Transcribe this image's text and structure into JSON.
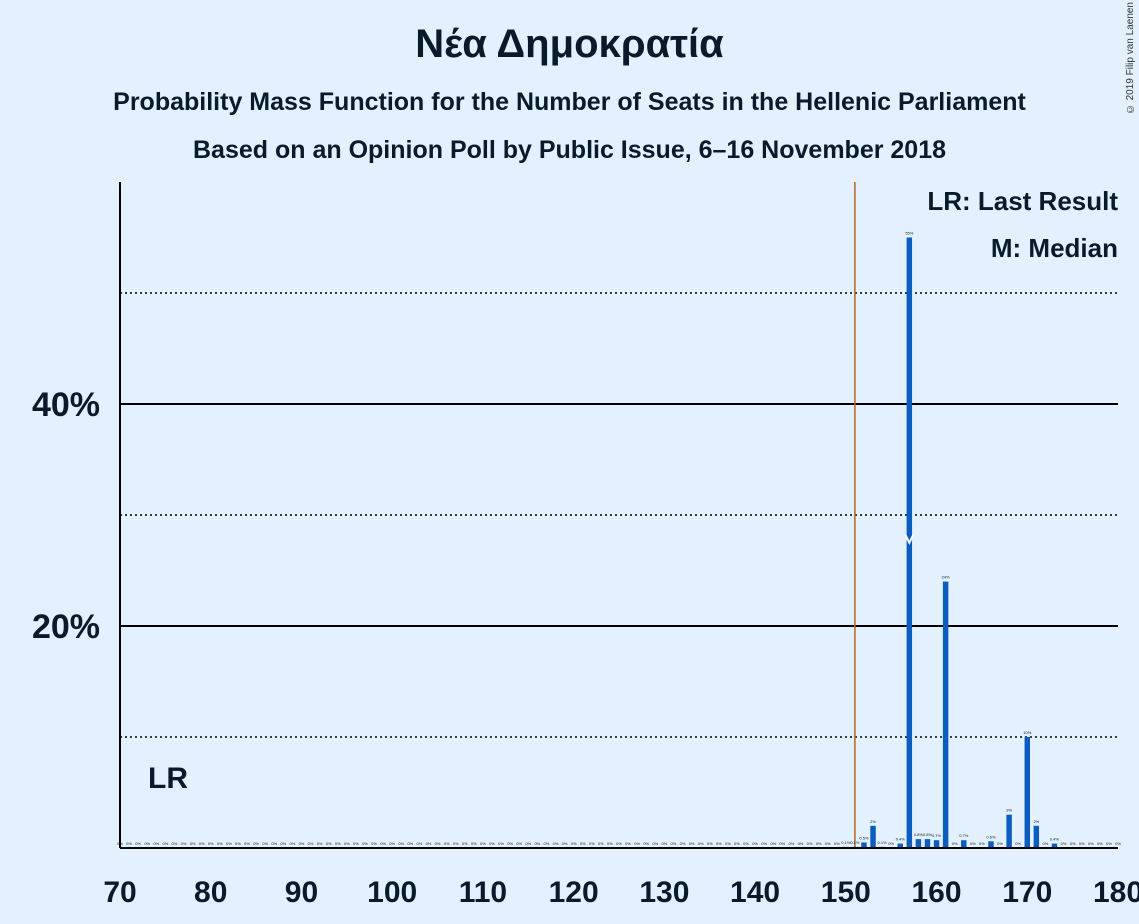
{
  "title": "Νέα Δημοκρατία",
  "subtitle_1": "Probability Mass Function for the Number of Seats in the Hellenic Parliament",
  "subtitle_2": "Based on an Opinion Poll by Public Issue, 6–16 November 2018",
  "copyright": "© 2019 Filip van Laenen",
  "legend": {
    "last_result": "LR: Last Result",
    "median": "M: Median"
  },
  "lr_label": "LR",
  "colors": {
    "background": "#e3f0fd",
    "bar": "#0a5cbf",
    "last_result_line": "#b4661e",
    "text": "#0b1a2a"
  },
  "chart_data": {
    "type": "bar",
    "x": [
      70,
      71,
      72,
      73,
      74,
      75,
      76,
      77,
      78,
      79,
      80,
      81,
      82,
      83,
      84,
      85,
      86,
      87,
      88,
      89,
      90,
      91,
      92,
      93,
      94,
      95,
      96,
      97,
      98,
      99,
      100,
      101,
      102,
      103,
      104,
      105,
      106,
      107,
      108,
      109,
      110,
      111,
      112,
      113,
      114,
      115,
      116,
      117,
      118,
      119,
      120,
      121,
      122,
      123,
      124,
      125,
      126,
      127,
      128,
      129,
      130,
      131,
      132,
      133,
      134,
      135,
      136,
      137,
      138,
      139,
      140,
      141,
      142,
      143,
      144,
      145,
      146,
      147,
      148,
      149,
      150,
      151,
      152,
      153,
      154,
      155,
      156,
      157,
      158,
      159,
      160,
      161,
      162,
      163,
      164,
      165,
      166,
      167,
      168,
      169,
      170,
      171,
      172,
      173,
      174,
      175,
      176,
      177,
      178,
      179,
      180
    ],
    "values": [
      0,
      0,
      0,
      0,
      0,
      0,
      0,
      0,
      0,
      0,
      0,
      0,
      0,
      0,
      0,
      0,
      0,
      0,
      0,
      0,
      0,
      0,
      0,
      0,
      0,
      0,
      0,
      0,
      0,
      0,
      0,
      0,
      0,
      0,
      0,
      0,
      0,
      0,
      0,
      0,
      0,
      0,
      0,
      0,
      0,
      0,
      0,
      0,
      0,
      0,
      0,
      0,
      0,
      0,
      0,
      0,
      0,
      0,
      0,
      0,
      0,
      0,
      0,
      0,
      0,
      0,
      0,
      0,
      0,
      0,
      0,
      0,
      0,
      0,
      0,
      0,
      0,
      0,
      0,
      0,
      0.1,
      0.1,
      0.5,
      2,
      0.1,
      0,
      0.4,
      55,
      0.8,
      0.8,
      0.7,
      24,
      0,
      0.7,
      0,
      0,
      0.6,
      0,
      3,
      0,
      10,
      2,
      0,
      0.4,
      0,
      0,
      0,
      0,
      0,
      0,
      0
    ],
    "bar_labels": [
      "0%",
      "0%",
      "0%",
      "0%",
      "0%",
      "0%",
      "0%",
      "0%",
      "0%",
      "0%",
      "0%",
      "0%",
      "0%",
      "0%",
      "0%",
      "0%",
      "0%",
      "0%",
      "0%",
      "0%",
      "0%",
      "0%",
      "0%",
      "0%",
      "0%",
      "0%",
      "0%",
      "0%",
      "0%",
      "0%",
      "0%",
      "0%",
      "0%",
      "0%",
      "0%",
      "0%",
      "0%",
      "0%",
      "0%",
      "0%",
      "0%",
      "0%",
      "0%",
      "0%",
      "0%",
      "0%",
      "0%",
      "0%",
      "0%",
      "0%",
      "0%",
      "0%",
      "0%",
      "0%",
      "0%",
      "0%",
      "0%",
      "0%",
      "0%",
      "0%",
      "0%",
      "0%",
      "0%",
      "0%",
      "0%",
      "0%",
      "0%",
      "0%",
      "0%",
      "0%",
      "0%",
      "0%",
      "0%",
      "0%",
      "0%",
      "0%",
      "0%",
      "0%",
      "0%",
      "0%",
      "0.1%",
      "0.1%",
      "0.5%",
      "2%",
      "0.1%",
      "0%",
      "0.4%",
      "55%",
      "0.8%",
      "0.8%",
      "0.7%",
      "24%",
      "0%",
      "0.7%",
      "0%",
      "0%",
      "0.6%",
      "0%",
      "3%",
      "0%",
      "10%",
      "2%",
      "0%",
      "0.4%",
      "0%",
      "0%",
      "0%",
      "0%",
      "0%",
      "0%",
      "0%"
    ],
    "x_ticks": [
      70,
      80,
      90,
      100,
      110,
      120,
      130,
      140,
      150,
      160,
      170,
      180
    ],
    "x_tick_labels": [
      "70",
      "80",
      "90",
      "100",
      "110",
      "120",
      "130",
      "140",
      "150",
      "160",
      "170",
      "180"
    ],
    "y_ticks": [
      20,
      40
    ],
    "y_tick_labels": [
      "20%",
      "40%"
    ],
    "y_minor_gridlines": [
      10,
      30,
      50
    ],
    "xlim": [
      70,
      180
    ],
    "ylim": [
      0,
      60
    ],
    "last_result": 151,
    "median": 157,
    "grid": true,
    "legend_position": "top-right"
  }
}
